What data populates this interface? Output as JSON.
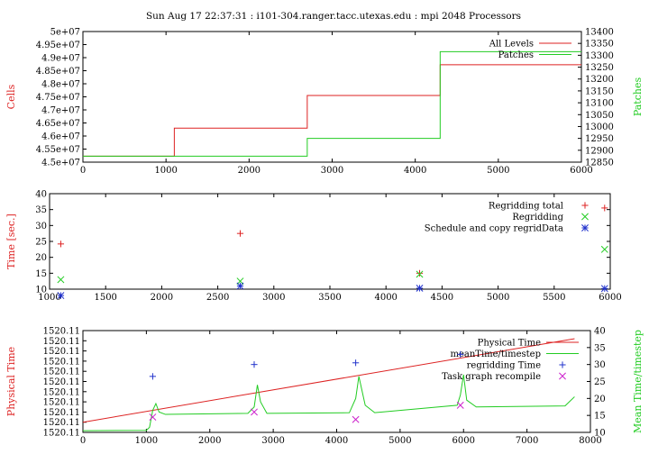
{
  "title": "Sun Aug 17 22:37:31 : i101-304.ranger.tacc.utexas.edu : mpi 2048 Processors",
  "colors": {
    "red": "#dd2222",
    "green": "#22cc22",
    "blue": "#2233cc",
    "magenta": "#cc22cc",
    "axis": "#000000",
    "grid": "#999999"
  },
  "chart_data": [
    {
      "type": "line",
      "panel": "cells-patches",
      "ylabel": "Cells",
      "y2label": "Patches",
      "xlim": [
        0,
        6000
      ],
      "ylim": [
        45000000,
        50000000
      ],
      "y2lim": [
        12850,
        13400
      ],
      "xticks": [
        "0",
        "1000",
        "2000",
        "3000",
        "4000",
        "5000",
        "6000"
      ],
      "yticks": [
        "4.5e+07",
        "4.55e+07",
        "4.6e+07",
        "4.65e+07",
        "4.7e+07",
        "4.75e+07",
        "4.8e+07",
        "4.85e+07",
        "4.9e+07",
        "4.95e+07",
        "5e+07"
      ],
      "y2ticks": [
        "12850",
        "12900",
        "12950",
        "13000",
        "13050",
        "13100",
        "13150",
        "13200",
        "13250",
        "13300",
        "13350",
        "13400"
      ],
      "legend_position": "top-right",
      "series": [
        {
          "name": "All Levels",
          "axis": "left",
          "style": "step",
          "color": "#dd2222",
          "x": [
            0,
            1100,
            2700,
            4300,
            6000
          ],
          "y": [
            45230000,
            46300000,
            47550000,
            48730000,
            48730000
          ]
        },
        {
          "name": "Patches",
          "axis": "right",
          "style": "step",
          "color": "#22cc22",
          "x": [
            0,
            2700,
            4300,
            6000
          ],
          "y": [
            12875,
            12950,
            13315,
            13315
          ]
        }
      ]
    },
    {
      "type": "scatter",
      "panel": "regrid-times",
      "ylabel": "Time [sec.]",
      "xlim": [
        1000,
        6000
      ],
      "ylim": [
        10,
        40
      ],
      "xticks": [
        "1000",
        "1500",
        "2000",
        "2500",
        "3000",
        "3500",
        "4000",
        "4500",
        "5000",
        "5500",
        "6000"
      ],
      "yticks": [
        "10",
        "15",
        "20",
        "25",
        "30",
        "35",
        "40"
      ],
      "legend_position": "top-right",
      "series": [
        {
          "name": "Regridding total",
          "marker": "+",
          "color": "#dd2222",
          "x": [
            1100,
            2700,
            4300,
            5950
          ],
          "y": [
            24.2,
            27.5,
            15.0,
            35.5
          ]
        },
        {
          "name": "Regridding",
          "marker": "x",
          "color": "#22cc22",
          "x": [
            1100,
            2700,
            4300,
            5950
          ],
          "y": [
            13.0,
            12.5,
            14.7,
            22.5
          ]
        },
        {
          "name": "Schedule and copy regridData",
          "marker": "*",
          "color": "#2233cc",
          "x": [
            1100,
            2700,
            4300,
            5950
          ],
          "y": [
            8.0,
            11.0,
            10.3,
            10.2
          ]
        }
      ]
    },
    {
      "type": "line",
      "panel": "physical-time",
      "ylabel": "Physical Time",
      "y2label": "Mean Time/timestep",
      "xlim": [
        0,
        8000
      ],
      "ylim": [
        0,
        10
      ],
      "y2lim": [
        10,
        40
      ],
      "xticks": [
        "0",
        "1000",
        "2000",
        "3000",
        "4000",
        "5000",
        "6000",
        "7000",
        "8000"
      ],
      "yticks": [
        "1520.11",
        "1520.11",
        "1520.11",
        "1520.11",
        "1520.11",
        "1520.11",
        "1520.11",
        "1520.11",
        "1520.11",
        "1520.11",
        "1520.11"
      ],
      "y2ticks": [
        "10",
        "15",
        "20",
        "25",
        "30",
        "35",
        "40"
      ],
      "legend_position": "top-right",
      "series": [
        {
          "name": "Physical Time",
          "axis": "left",
          "style": "line",
          "color": "#dd2222",
          "x": [
            0,
            7750
          ],
          "y": [
            1.0,
            9.2
          ]
        },
        {
          "name": "meanTime/timestep",
          "axis": "right",
          "style": "line",
          "color": "#22cc22",
          "x": [
            0,
            1000,
            1050,
            1100,
            1150,
            1200,
            1300,
            2600,
            2700,
            2750,
            2800,
            2900,
            4200,
            4300,
            4350,
            4450,
            4600,
            5900,
            5950,
            6000,
            6050,
            6200,
            7600,
            7750
          ],
          "y": [
            10.5,
            10.6,
            11.5,
            16.5,
            18.5,
            16.0,
            15.3,
            15.6,
            17.5,
            24.0,
            19.0,
            15.6,
            15.8,
            20.0,
            26.5,
            18.0,
            15.8,
            18.0,
            21.0,
            27.0,
            19.5,
            17.5,
            17.8,
            20.5
          ]
        },
        {
          "name": "regridding Time",
          "axis": "right",
          "style": "marker",
          "marker": "+",
          "color": "#2233cc",
          "x": [
            1100,
            2700,
            4300,
            5950
          ],
          "y": [
            26.5,
            30.0,
            30.5,
            33.0
          ]
        },
        {
          "name": "Task graph recompile",
          "axis": "right",
          "style": "marker",
          "marker": "x",
          "color": "#cc22cc",
          "x": [
            1100,
            2700,
            4300,
            5950
          ],
          "y": [
            14.5,
            16.0,
            13.8,
            18.0
          ]
        }
      ]
    }
  ]
}
